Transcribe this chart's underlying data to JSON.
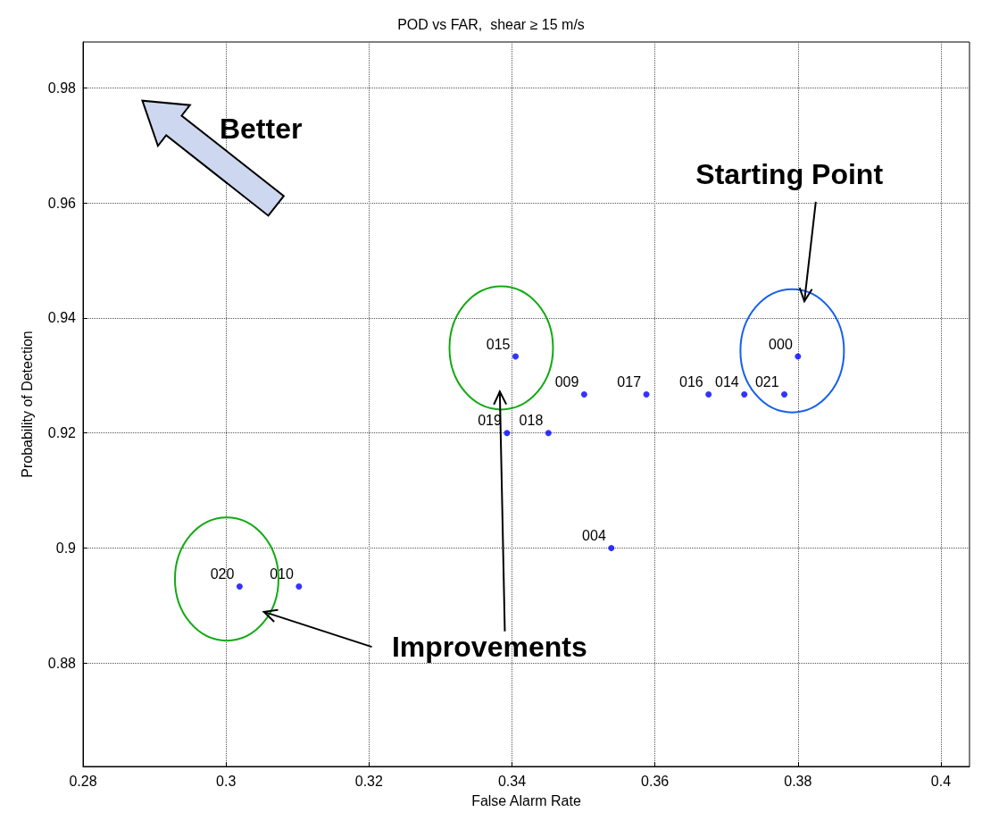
{
  "chart_data": {
    "type": "scatter",
    "title": "POD vs FAR,  shear ≥ 15 m/s",
    "xlabel": "False Alarm Rate",
    "ylabel": "Probability of Detection",
    "x": [
      0.3405,
      0.38,
      0.3501,
      0.3588,
      0.3675,
      0.3725,
      0.3781,
      0.3393,
      0.3451,
      0.3539,
      0.3019,
      0.3102
    ],
    "values": [
      0.9333,
      0.9333,
      0.9267,
      0.9267,
      0.9267,
      0.9267,
      0.9267,
      0.92,
      0.92,
      0.9,
      0.8933,
      0.8933
    ],
    "color": "#0000ff",
    "marker": "circle",
    "xlim": [
      0.28,
      0.404
    ],
    "xticks": [
      0.28,
      0.3,
      0.32,
      0.34,
      0.36,
      0.38,
      0.4
    ],
    "ylim": [
      0.862,
      0.988
    ],
    "yticks": [
      0.88,
      0.9,
      0.92,
      0.94,
      0.96,
      0.98
    ],
    "grid": true,
    "annotations": [
      {
        "text": "015",
        "x": 0.3405,
        "y": 0.9333
      },
      {
        "text": "000",
        "x": 0.38,
        "y": 0.9333
      },
      {
        "text": "009",
        "x": 0.3501,
        "y": 0.9267
      },
      {
        "text": "017",
        "x": 0.3588,
        "y": 0.9267
      },
      {
        "text": "016",
        "x": 0.3675,
        "y": 0.9267
      },
      {
        "text": "014",
        "x": 0.3725,
        "y": 0.9267
      },
      {
        "text": "021",
        "x": 0.3781,
        "y": 0.9267
      },
      {
        "text": "019",
        "x": 0.3393,
        "y": 0.92
      },
      {
        "text": "018",
        "x": 0.3451,
        "y": 0.92
      },
      {
        "text": "004",
        "x": 0.3539,
        "y": 0.9
      },
      {
        "text": "020",
        "x": 0.3019,
        "y": 0.8933
      },
      {
        "text": "010",
        "x": 0.3102,
        "y": 0.8933
      },
      "Better",
      "Starting Point",
      "Improvements"
    ]
  }
}
